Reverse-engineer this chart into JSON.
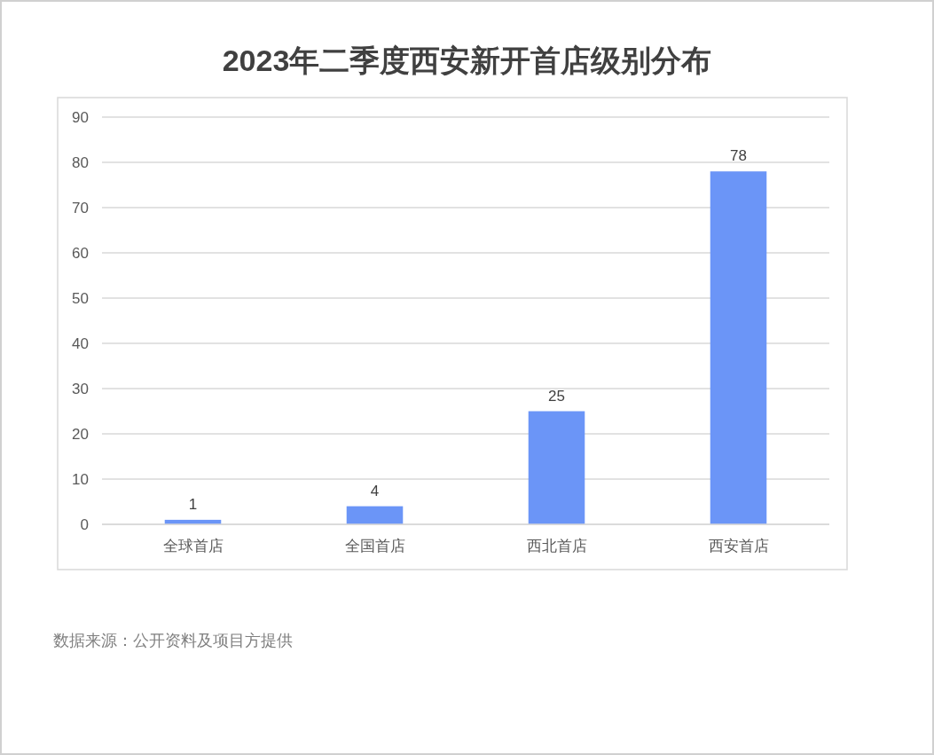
{
  "chart_data": {
    "type": "bar",
    "title": "2023年二季度西安新开首店级别分布",
    "categories": [
      "全球首店",
      "全国首店",
      "西北首店",
      "西安首店"
    ],
    "values": [
      1,
      4,
      25,
      78
    ],
    "color": "#6b95f7",
    "ylim": [
      0,
      90
    ],
    "yticks": [
      0,
      10,
      20,
      30,
      40,
      50,
      60,
      70,
      80,
      90
    ],
    "grid": "y",
    "data_labels": true,
    "annotations": [
      "数据来源：公开资料及项目方提供"
    ]
  }
}
